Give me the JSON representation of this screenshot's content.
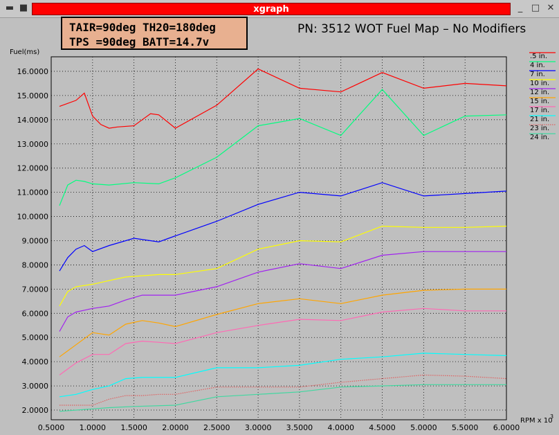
{
  "window": {
    "title": "xgraph",
    "menu_icon": "menu-icon",
    "minimize_icon": "minimize-icon",
    "maximize_icon": "maximize-icon",
    "close_icon": "close-icon"
  },
  "info": {
    "line1": "TAIR=90deg TH20=180deg",
    "line2": "TPS =90deg BATT=14.7v"
  },
  "chart_data": {
    "type": "line",
    "title": "PN: 3512 WOT Fuel Map – No Modifiers",
    "ylabel": "Fuel(ms)",
    "xlabel": "RPM x 10",
    "xlabel_exp": "3",
    "xlim": [
      0.5,
      6.0
    ],
    "ylim": [
      1.6,
      16.6
    ],
    "xticks": [
      "0.5000",
      "1.0000",
      "1.5000",
      "2.0000",
      "2.5000",
      "3.0000",
      "3.5000",
      "4.0000",
      "4.5000",
      "5.0000",
      "5.5000",
      "6.0000"
    ],
    "yticks": [
      "2.0000",
      "3.0000",
      "4.0000",
      "5.0000",
      "6.0000",
      "7.0000",
      "8.0000",
      "9.0000",
      "10.0000",
      "11.0000",
      "12.0000",
      "13.0000",
      "14.0000",
      "15.0000",
      "16.0000"
    ],
    "grid": true,
    "legend": "right",
    "series": [
      {
        "name": ".5 in.",
        "color": "#ff0000",
        "style": "solid",
        "x": [
          0.6,
          0.8,
          0.9,
          1.0,
          1.1,
          1.2,
          1.3,
          1.5,
          1.6,
          1.7,
          1.8,
          2.0,
          2.5,
          3.0,
          3.5,
          4.0,
          4.5,
          5.0,
          5.5,
          6.0
        ],
        "y": [
          14.55,
          14.8,
          15.1,
          14.15,
          13.8,
          13.65,
          13.7,
          13.75,
          14.0,
          14.25,
          14.2,
          13.65,
          14.6,
          16.1,
          15.3,
          15.15,
          15.95,
          15.3,
          15.5,
          15.4
        ]
      },
      {
        "name": "4 in.",
        "color": "#00ff7f",
        "style": "solid",
        "x": [
          0.6,
          0.7,
          0.8,
          0.9,
          1.0,
          1.2,
          1.5,
          1.8,
          2.0,
          2.5,
          3.0,
          3.5,
          4.0,
          4.5,
          5.0,
          5.5,
          6.0
        ],
        "y": [
          10.45,
          11.3,
          11.5,
          11.45,
          11.35,
          11.3,
          11.4,
          11.35,
          11.6,
          12.45,
          13.75,
          14.05,
          13.35,
          15.25,
          13.35,
          14.15,
          14.2
        ]
      },
      {
        "name": "7 in.",
        "color": "#0000ff",
        "style": "solid",
        "x": [
          0.6,
          0.7,
          0.8,
          0.9,
          1.0,
          1.2,
          1.5,
          1.7,
          1.8,
          2.0,
          2.5,
          3.0,
          3.5,
          4.0,
          4.5,
          5.0,
          5.5,
          6.0
        ],
        "y": [
          7.75,
          8.3,
          8.65,
          8.8,
          8.55,
          8.8,
          9.1,
          9.0,
          8.95,
          9.2,
          9.8,
          10.5,
          11.0,
          10.85,
          11.4,
          10.85,
          10.95,
          11.05
        ]
      },
      {
        "name": "10 in.",
        "color": "#ffff00",
        "style": "solid",
        "x": [
          0.6,
          0.7,
          0.8,
          1.0,
          1.2,
          1.4,
          1.6,
          1.8,
          2.0,
          2.5,
          3.0,
          3.5,
          4.0,
          4.5,
          5.0,
          5.5,
          6.0
        ],
        "y": [
          6.3,
          6.9,
          7.1,
          7.2,
          7.35,
          7.5,
          7.55,
          7.6,
          7.6,
          7.85,
          8.65,
          9.0,
          8.95,
          9.6,
          9.55,
          9.55,
          9.6
        ]
      },
      {
        "name": "12 in.",
        "color": "#a020f0",
        "style": "solid",
        "x": [
          0.6,
          0.7,
          0.8,
          1.0,
          1.2,
          1.4,
          1.6,
          1.8,
          2.0,
          2.5,
          3.0,
          3.5,
          4.0,
          4.5,
          5.0,
          5.5,
          6.0
        ],
        "y": [
          5.25,
          5.85,
          6.05,
          6.2,
          6.3,
          6.55,
          6.75,
          6.75,
          6.75,
          7.1,
          7.7,
          8.05,
          7.85,
          8.4,
          8.55,
          8.55,
          8.55
        ]
      },
      {
        "name": "15 in.",
        "color": "#ffa500",
        "style": "solid",
        "x": [
          0.6,
          0.8,
          1.0,
          1.2,
          1.4,
          1.6,
          1.8,
          2.0,
          2.5,
          3.0,
          3.5,
          4.0,
          4.5,
          5.0,
          5.5,
          6.0
        ],
        "y": [
          4.2,
          4.7,
          5.2,
          5.1,
          5.55,
          5.7,
          5.6,
          5.45,
          5.95,
          6.4,
          6.6,
          6.4,
          6.75,
          6.95,
          7.0,
          7.0
        ]
      },
      {
        "name": "17 in.",
        "color": "#ff69b4",
        "style": "solid",
        "x": [
          0.6,
          0.8,
          1.0,
          1.2,
          1.4,
          1.6,
          1.8,
          2.0,
          2.5,
          3.0,
          3.5,
          4.0,
          4.5,
          5.0,
          5.5,
          6.0
        ],
        "y": [
          3.45,
          3.95,
          4.3,
          4.3,
          4.75,
          4.85,
          4.8,
          4.75,
          5.2,
          5.5,
          5.75,
          5.7,
          6.05,
          6.2,
          6.1,
          6.1
        ]
      },
      {
        "name": "21 in.",
        "color": "#00ffff",
        "style": "solid",
        "x": [
          0.6,
          0.8,
          1.0,
          1.2,
          1.4,
          1.6,
          1.8,
          2.0,
          2.5,
          3.0,
          3.5,
          4.0,
          4.5,
          5.0,
          5.5,
          6.0
        ],
        "y": [
          2.55,
          2.65,
          2.85,
          3.0,
          3.3,
          3.35,
          3.35,
          3.35,
          3.75,
          3.75,
          3.85,
          4.1,
          4.2,
          4.35,
          4.3,
          4.25
        ]
      },
      {
        "name": "23 in.",
        "color": "#e06060",
        "style": "dotted",
        "x": [
          0.6,
          0.8,
          1.0,
          1.2,
          1.4,
          1.6,
          1.8,
          2.0,
          2.5,
          3.0,
          3.5,
          4.0,
          4.5,
          5.0,
          5.5,
          6.0
        ],
        "y": [
          2.2,
          2.2,
          2.2,
          2.45,
          2.6,
          2.6,
          2.65,
          2.65,
          2.95,
          2.95,
          2.95,
          3.15,
          3.3,
          3.45,
          3.4,
          3.3
        ]
      },
      {
        "name": "24 in.",
        "color": "#40d8a0",
        "style": "solid",
        "x": [
          0.6,
          1.0,
          1.2,
          1.5,
          2.0,
          2.5,
          3.0,
          3.5,
          4.0,
          4.5,
          5.0,
          5.5,
          6.0
        ],
        "y": [
          1.95,
          2.05,
          2.1,
          2.15,
          2.2,
          2.55,
          2.65,
          2.75,
          2.95,
          3.0,
          3.05,
          3.05,
          3.05
        ]
      }
    ]
  }
}
